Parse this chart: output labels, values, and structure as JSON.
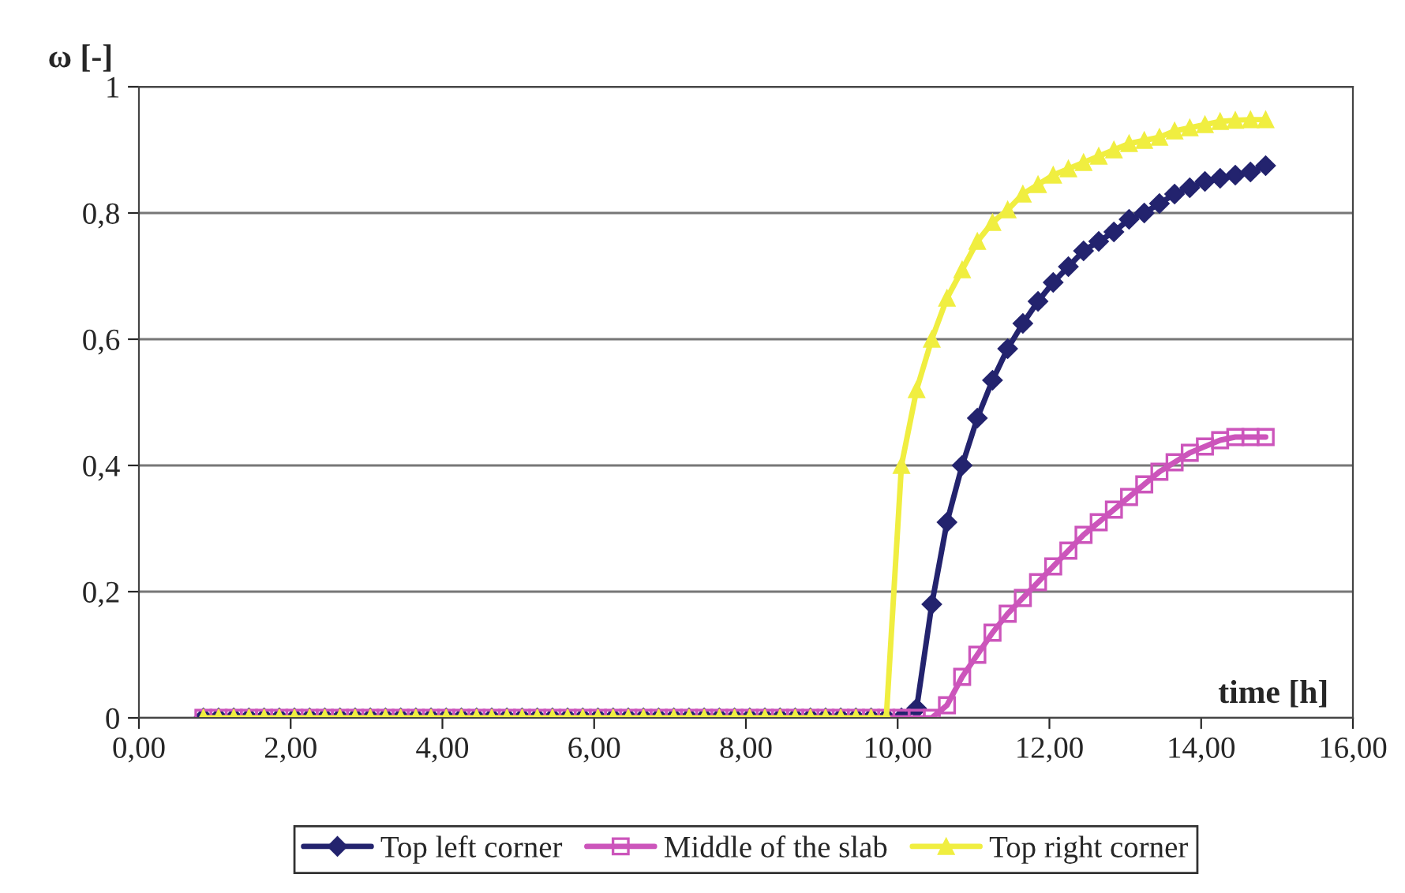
{
  "chart_data": {
    "type": "line",
    "xlabel": "time [h]",
    "ylabel": "ω [-]",
    "x": [
      0.85,
      1.05,
      1.25,
      1.45,
      1.65,
      1.85,
      2.05,
      2.25,
      2.45,
      2.65,
      2.85,
      3.05,
      3.25,
      3.45,
      3.65,
      3.85,
      4.05,
      4.25,
      4.45,
      4.65,
      4.85,
      5.05,
      5.25,
      5.45,
      5.65,
      5.85,
      6.05,
      6.25,
      6.45,
      6.65,
      6.85,
      7.05,
      7.25,
      7.45,
      7.65,
      7.85,
      8.05,
      8.25,
      8.45,
      8.65,
      8.85,
      9.05,
      9.25,
      9.45,
      9.65,
      9.85,
      10.05,
      10.25,
      10.45,
      10.65,
      10.85,
      11.05,
      11.25,
      11.45,
      11.65,
      11.85,
      12.05,
      12.25,
      12.45,
      12.65,
      12.85,
      13.05,
      13.25,
      13.45,
      13.65,
      13.85,
      14.05,
      14.25,
      14.45,
      14.65,
      14.85
    ],
    "series": [
      {
        "name": "Top left corner",
        "color": "#23236e",
        "marker": "diamond",
        "values": [
          0,
          0,
          0,
          0,
          0,
          0,
          0,
          0,
          0,
          0,
          0,
          0,
          0,
          0,
          0,
          0,
          0,
          0,
          0,
          0,
          0,
          0,
          0,
          0,
          0,
          0,
          0,
          0,
          0,
          0,
          0,
          0,
          0,
          0,
          0,
          0,
          0,
          0,
          0,
          0,
          0,
          0,
          0,
          0,
          0,
          0,
          0,
          0.015,
          0.18,
          0.31,
          0.4,
          0.475,
          0.535,
          0.585,
          0.625,
          0.66,
          0.69,
          0.715,
          0.74,
          0.755,
          0.77,
          0.79,
          0.8,
          0.815,
          0.83,
          0.84,
          0.85,
          0.855,
          0.86,
          0.865,
          0.875
        ]
      },
      {
        "name": "Middle of the slab",
        "color": "#cc55bb",
        "marker": "square",
        "values": [
          0,
          0,
          0,
          0,
          0,
          0,
          0,
          0,
          0,
          0,
          0,
          0,
          0,
          0,
          0,
          0,
          0,
          0,
          0,
          0,
          0,
          0,
          0,
          0,
          0,
          0,
          0,
          0,
          0,
          0,
          0,
          0,
          0,
          0,
          0,
          0,
          0,
          0,
          0,
          0,
          0,
          0,
          0,
          0,
          0,
          0,
          0,
          0,
          0,
          0.02,
          0.065,
          0.1,
          0.135,
          0.165,
          0.19,
          0.215,
          0.24,
          0.265,
          0.29,
          0.31,
          0.33,
          0.35,
          0.37,
          0.39,
          0.405,
          0.42,
          0.43,
          0.44,
          0.445,
          0.445,
          0.445
        ]
      },
      {
        "name": "Top right corner",
        "color": "#f0ee40",
        "marker": "triangle",
        "values": [
          0,
          0,
          0,
          0,
          0,
          0,
          0,
          0,
          0,
          0,
          0,
          0,
          0,
          0,
          0,
          0,
          0,
          0,
          0,
          0,
          0,
          0,
          0,
          0,
          0,
          0,
          0,
          0,
          0,
          0,
          0,
          0,
          0,
          0,
          0,
          0,
          0,
          0,
          0,
          0,
          0,
          0,
          0,
          0,
          0,
          0,
          0.4,
          0.52,
          0.6,
          0.665,
          0.71,
          0.755,
          0.785,
          0.805,
          0.83,
          0.845,
          0.86,
          0.87,
          0.88,
          0.89,
          0.9,
          0.91,
          0.915,
          0.92,
          0.93,
          0.935,
          0.94,
          0.945,
          0.947,
          0.948,
          0.948
        ]
      }
    ],
    "xlim": [
      0,
      16
    ],
    "ylim": [
      0,
      1
    ],
    "xticks": [
      {
        "value": 0,
        "label": "0,00"
      },
      {
        "value": 2,
        "label": "2,00"
      },
      {
        "value": 4,
        "label": "4,00"
      },
      {
        "value": 6,
        "label": "6,00"
      },
      {
        "value": 8,
        "label": "8,00"
      },
      {
        "value": 10,
        "label": "10,00"
      },
      {
        "value": 12,
        "label": "12,00"
      },
      {
        "value": 14,
        "label": "14,00"
      },
      {
        "value": 16,
        "label": "16,00"
      }
    ],
    "yticks": [
      0,
      {
        "value": 0.2,
        "label": "0,2"
      },
      {
        "value": 0.4,
        "label": "0,4"
      },
      {
        "value": 0.6,
        "label": "0,6"
      },
      {
        "value": 0.8,
        "label": "0,8"
      },
      1
    ],
    "grid": "y",
    "legend": "bottom"
  }
}
